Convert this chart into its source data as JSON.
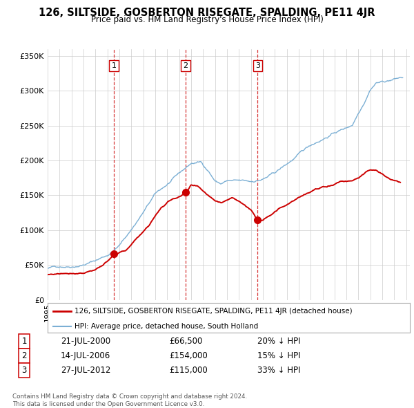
{
  "title": "126, SILTSIDE, GOSBERTON RISEGATE, SPALDING, PE11 4JR",
  "subtitle": "Price paid vs. HM Land Registry's House Price Index (HPI)",
  "property_label": "126, SILTSIDE, GOSBERTON RISEGATE, SPALDING, PE11 4JR (detached house)",
  "hpi_label": "HPI: Average price, detached house, South Holland",
  "transactions": [
    {
      "num": 1,
      "date": "21-JUL-2000",
      "price": 66500,
      "pct": "20%",
      "dir": "↓"
    },
    {
      "num": 2,
      "date": "14-JUL-2006",
      "price": 154000,
      "pct": "15%",
      "dir": "↓"
    },
    {
      "num": 3,
      "date": "27-JUL-2012",
      "price": 115000,
      "pct": "33%",
      "dir": "↓"
    }
  ],
  "transaction_dates_decimal": [
    2000.55,
    2006.54,
    2012.57
  ],
  "transaction_prices": [
    66500,
    154000,
    115000
  ],
  "footer": "Contains HM Land Registry data © Crown copyright and database right 2024.\nThis data is licensed under the Open Government Licence v3.0.",
  "ylim": [
    0,
    360000
  ],
  "yticks": [
    0,
    50000,
    100000,
    150000,
    200000,
    250000,
    300000,
    350000
  ],
  "property_color": "#cc0000",
  "hpi_color": "#7bafd4",
  "vline_color": "#cc0000",
  "background_color": "#ffffff",
  "grid_color": "#cccccc",
  "xlim_start": 1995,
  "xlim_end": 2025.3
}
